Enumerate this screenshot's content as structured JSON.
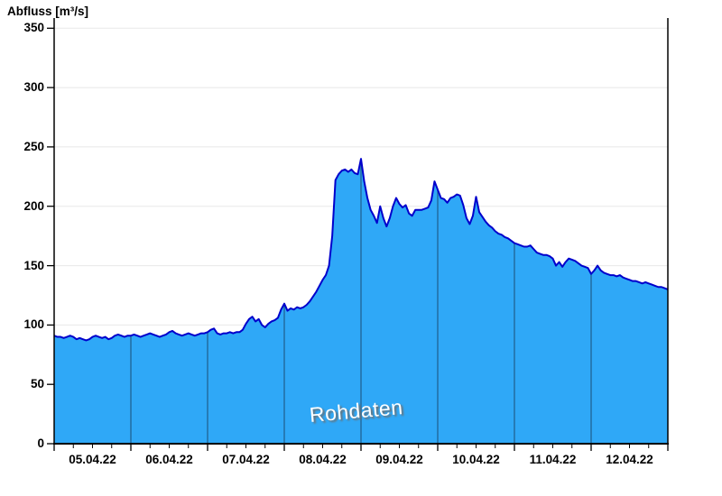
{
  "title": "Abfluss [m³/s]",
  "watermark": "Rohdaten",
  "chart_data": {
    "type": "area",
    "title": "Abfluss [m³/s]",
    "ylabel": "Abfluss [m³/s]",
    "xlabel": "",
    "ylim": [
      0,
      350
    ],
    "y_ticks": [
      0,
      50,
      100,
      150,
      200,
      250,
      300,
      350
    ],
    "x_tick_labels": [
      "05.04.22",
      "06.04.22",
      "07.04.22",
      "08.04.22",
      "09.04.22",
      "10.04.22",
      "11.04.22",
      "12.04.22"
    ],
    "x_minor_ticks_per_day": 4,
    "grid": "horizontal-light-gray, vertical day separators inside area only",
    "legend": "none",
    "series": [
      {
        "name": "Rohdaten",
        "unit": "m³/s",
        "x_unit": "hours since 05.04.22 00:00",
        "x_step_hours": 1,
        "values": [
          91,
          90,
          90,
          89,
          90,
          91,
          90,
          88,
          89,
          88,
          87,
          88,
          90,
          91,
          90,
          89,
          90,
          88,
          89,
          91,
          92,
          91,
          90,
          91,
          91,
          92,
          91,
          90,
          91,
          92,
          93,
          92,
          91,
          90,
          91,
          92,
          94,
          95,
          93,
          92,
          91,
          92,
          93,
          92,
          91,
          92,
          93,
          93,
          94,
          96,
          97,
          93,
          92,
          93,
          93,
          94,
          93,
          94,
          94,
          96,
          101,
          105,
          107,
          103,
          105,
          100,
          98,
          101,
          103,
          104,
          106,
          113,
          118,
          112,
          114,
          113,
          115,
          114,
          115,
          117,
          120,
          124,
          128,
          133,
          138,
          142,
          150,
          175,
          222,
          227,
          230,
          231,
          229,
          231,
          228,
          227,
          240,
          221,
          207,
          197,
          192,
          186,
          200,
          190,
          183,
          190,
          200,
          207,
          202,
          199,
          201,
          194,
          192,
          197,
          197,
          197,
          198,
          199,
          205,
          221,
          214,
          207,
          206,
          203,
          207,
          208,
          210,
          209,
          201,
          190,
          185,
          192,
          208,
          195,
          191,
          187,
          184,
          182,
          179,
          177,
          176,
          174,
          173,
          171,
          169,
          168,
          167,
          166,
          166,
          167,
          164,
          161,
          160,
          159,
          159,
          158,
          156,
          150,
          153,
          149,
          153,
          156,
          155,
          154,
          152,
          150,
          149,
          148,
          143,
          146,
          150,
          146,
          144,
          143,
          142,
          142,
          141,
          142,
          140,
          139,
          138,
          137,
          137,
          136,
          135,
          136,
          135,
          134,
          133,
          132,
          132,
          131,
          130
        ]
      }
    ],
    "colors": {
      "fill": "#2FA8F7",
      "line": "#0000CC",
      "day_separator": "#21689A",
      "gridline": "#E8E8E8",
      "axis": "#000000",
      "watermark_text": "#FFFFFF",
      "watermark_shadow": "#6E6E6E"
    }
  }
}
